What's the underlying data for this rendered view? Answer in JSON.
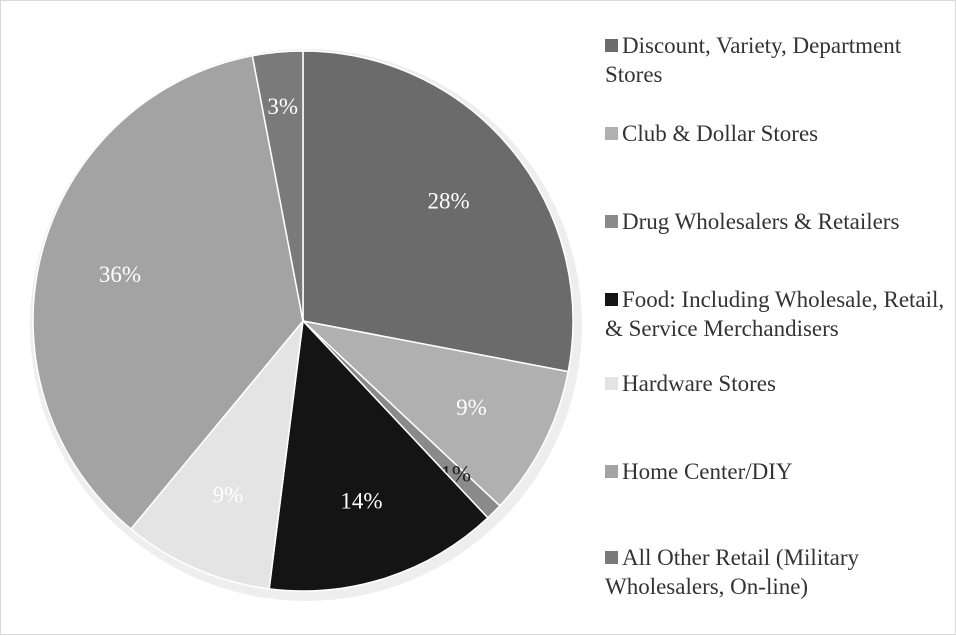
{
  "chart_data": {
    "type": "pie",
    "legend_position": "right",
    "slices": [
      {
        "label": "Discount, Variety, Department Stores",
        "value": 28,
        "value_label": "28%",
        "color": "#6b6b6b",
        "label_color": "#ffffff"
      },
      {
        "label": "Club & Dollar Stores",
        "value": 9,
        "value_label": "9%",
        "color": "#b0b0b0",
        "label_color": "#ffffff"
      },
      {
        "label": "Drug Wholesalers & Retailers",
        "value": 1,
        "value_label": "1%",
        "color": "#8a8a8a",
        "label_color": "#1a1a1a"
      },
      {
        "label": "Food: Including Wholesale, Retail, & Service Merchandisers",
        "value": 14,
        "value_label": "14%",
        "color": "#141414",
        "label_color": "#ffffff"
      },
      {
        "label": "Hardware Stores",
        "value": 9,
        "value_label": "9%",
        "color": "#e4e4e4",
        "label_color": "#ffffff"
      },
      {
        "label": "Home Center/DIY",
        "value": 36,
        "value_label": "36%",
        "color": "#a3a3a3",
        "label_color": "#ffffff"
      },
      {
        "label": "All Other Retail (Military Wholesalers, On-line)",
        "value": 3,
        "value_label": "3%",
        "color": "#7a7a7a",
        "label_color": "#ffffff"
      }
    ]
  }
}
